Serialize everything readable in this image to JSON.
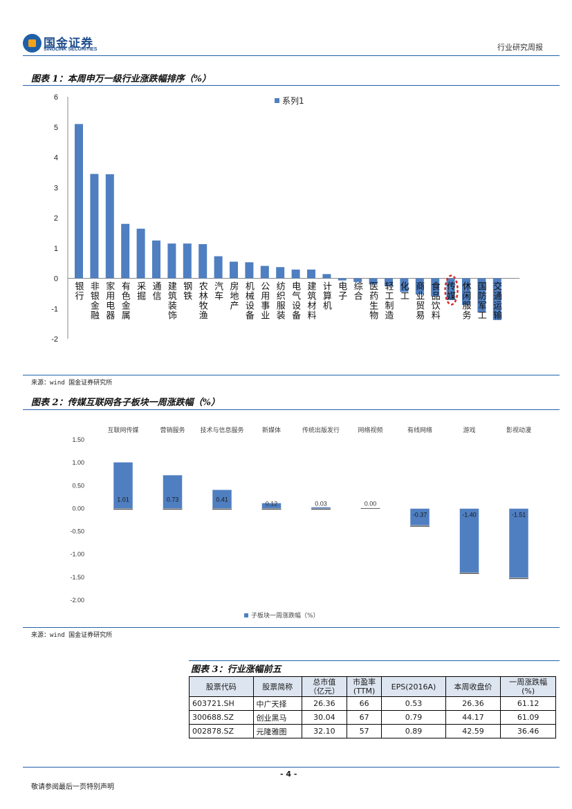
{
  "header": {
    "logo_cn": "国金证券",
    "logo_en": "SINOLINK SECURITIES",
    "doc_type": "行业研究周报"
  },
  "figure1": {
    "title": "图表 1：本周申万一级行业涨跌幅排序（%）",
    "source": "来源：wind 国金证券研究所"
  },
  "figure2": {
    "title": "图表 2：传媒互联网各子板块一周涨跌幅（%）",
    "source": "来源：wind 国金证券研究所"
  },
  "figure3": {
    "title": "图表 3：行业涨幅前五",
    "columns": [
      "股票代码",
      "股票简称",
      "总市值\n（亿元）",
      "市盈率\n(TTM)",
      "EPS(2016A)",
      "本周收盘价",
      "一周涨跌幅\n(%)"
    ],
    "rows": [
      [
        "603721.SH",
        "中广天择",
        "26.36",
        "66",
        "0.53",
        "26.36",
        "61.12"
      ],
      [
        "300688.SZ",
        "创业黑马",
        "30.04",
        "67",
        "0.79",
        "44.17",
        "61.09"
      ],
      [
        "002878.SZ",
        "元隆雅图",
        "32.10",
        "57",
        "0.89",
        "42.59",
        "36.46"
      ]
    ]
  },
  "footer": {
    "disclaimer": "敬请参阅最后一页特别声明",
    "page": "- 4 -"
  },
  "colors": {
    "bar": "#4f7fc1",
    "rule": "#1f5fa8",
    "highlight": "#d62b2b"
  },
  "chart_data": [
    {
      "type": "bar",
      "title": "",
      "legend": "系列1",
      "categories": [
        "银行",
        "非银金融",
        "家用电器",
        "有色金属",
        "采掘",
        "通信",
        "建筑装饰",
        "钢铁",
        "农林牧渔",
        "汽车",
        "房地产",
        "机械设备",
        "公用事业",
        "纺织服装",
        "电气设备",
        "建筑材料",
        "计算机",
        "电子",
        "综合",
        "医药生物",
        "轻工制造",
        "化工",
        "商业贸易",
        "食品饮料",
        "传媒",
        "休闲服务",
        "国防军工",
        "交通运输"
      ],
      "values": [
        5.1,
        3.45,
        3.44,
        1.8,
        1.64,
        1.25,
        1.15,
        1.15,
        1.13,
        0.73,
        0.55,
        0.53,
        0.41,
        0.37,
        0.29,
        0.29,
        0.14,
        -0.07,
        -0.12,
        -0.2,
        -0.26,
        -0.45,
        -0.53,
        -0.6,
        -0.72,
        -0.88,
        -1.13,
        -1.38
      ],
      "ylim": [
        -2,
        6
      ],
      "yticks": [
        "6",
        "5",
        "4",
        "3",
        "2",
        "1",
        "0",
        "-1",
        "-2"
      ],
      "highlight_category": "传媒"
    },
    {
      "type": "bar",
      "title": "",
      "legend": "子板块一周涨跌幅（%）",
      "categories": [
        "互联网传媒",
        "营销服务",
        "技术与信息服务",
        "新媒体",
        "传统出版发行",
        "网络视频",
        "有线网络",
        "游戏",
        "影视动漫"
      ],
      "values": [
        1.01,
        0.73,
        0.41,
        0.12,
        0.03,
        0.0,
        -0.37,
        -1.4,
        -1.51
      ],
      "value_labels": [
        "1.01",
        "0.73",
        "0.41",
        "0.12",
        "0.03",
        "0.00",
        "-0.37",
        "-1.40",
        "-1.51"
      ],
      "ylim": [
        -2,
        1.5
      ],
      "yticks": [
        "1.50",
        "1.00",
        "0.50",
        "0.00",
        "-0.50",
        "-1.00",
        "-1.50",
        "-2.00"
      ]
    }
  ]
}
